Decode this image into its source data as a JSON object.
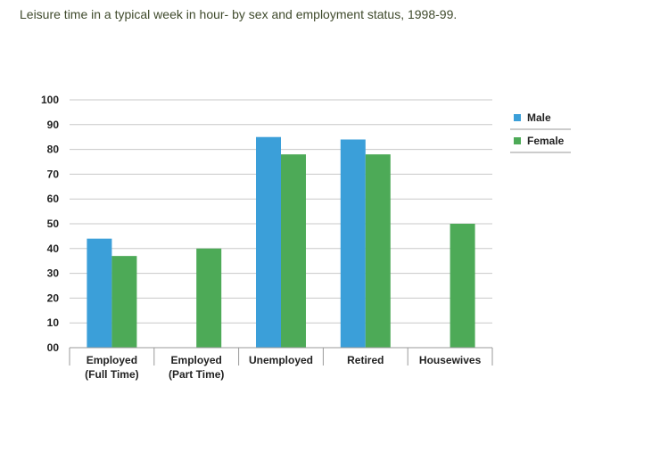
{
  "title": "Leisure time in a typical week in hour- by sex and employment status, 1998-99.",
  "colors": {
    "male": "#3b9fd9",
    "female": "#4daa57",
    "grid": "#c8c8c8",
    "axis": "#9a9a9a"
  },
  "chart_data": {
    "type": "bar",
    "title": "Leisure time in a typical week in hour- by sex and employment status, 1998-99.",
    "xlabel": "",
    "ylabel": "",
    "ylim": [
      0,
      100
    ],
    "yticks": [
      "00",
      "10",
      "20",
      "30",
      "40",
      "50",
      "60",
      "70",
      "80",
      "90",
      "100"
    ],
    "grid": true,
    "legend": "right",
    "categories": [
      [
        "Employed",
        "(Full Time)"
      ],
      [
        "Employed",
        "(Part Time)"
      ],
      [
        "Unemployed"
      ],
      [
        "Retired"
      ],
      [
        "Housewives"
      ]
    ],
    "series": [
      {
        "name": "Male",
        "values": [
          44,
          null,
          85,
          84,
          null
        ]
      },
      {
        "name": "Female",
        "values": [
          37,
          40,
          78,
          78,
          50
        ]
      }
    ]
  }
}
